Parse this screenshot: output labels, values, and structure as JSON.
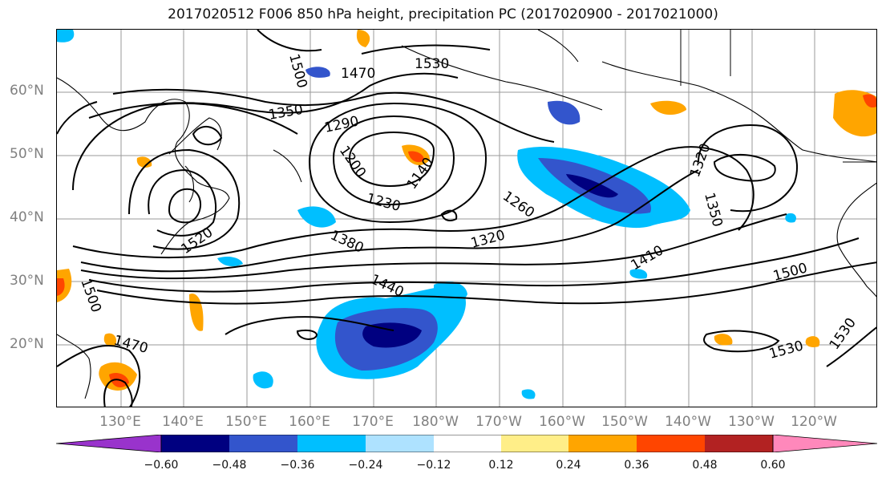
{
  "title": "2017020512 F006 850 hPa height, precipitation PC (2017020900 - 2017021000)",
  "lat_labels": [
    "60°N",
    "50°N",
    "40°N",
    "30°N",
    "20°N"
  ],
  "lon_labels": [
    "130°E",
    "140°E",
    "150°E",
    "160°E",
    "170°E",
    "180°W",
    "170°W",
    "160°W",
    "150°W",
    "140°W",
    "130°W",
    "120°W"
  ],
  "contour_labels": [
    "1500",
    "1530",
    "1470",
    "1350",
    "1290",
    "1200",
    "1140",
    "1230",
    "1260",
    "1320",
    "1380",
    "1440",
    "1410",
    "1500",
    "1320",
    "1350",
    "1520",
    "1470",
    "1500",
    "1530",
    "1530"
  ],
  "colorbar": {
    "ticks": [
      "−0.60",
      "−0.48",
      "−0.36",
      "−0.24",
      "−0.12",
      "0.12",
      "0.24",
      "0.36",
      "0.48",
      "0.60"
    ],
    "colors": [
      "#9933cc",
      "#000080",
      "#3355cc",
      "#00bfff",
      "#aee2ff",
      "#ffffff",
      "#ffee88",
      "#ffa500",
      "#ff4500",
      "#b22222",
      "#ff88bb"
    ]
  }
}
